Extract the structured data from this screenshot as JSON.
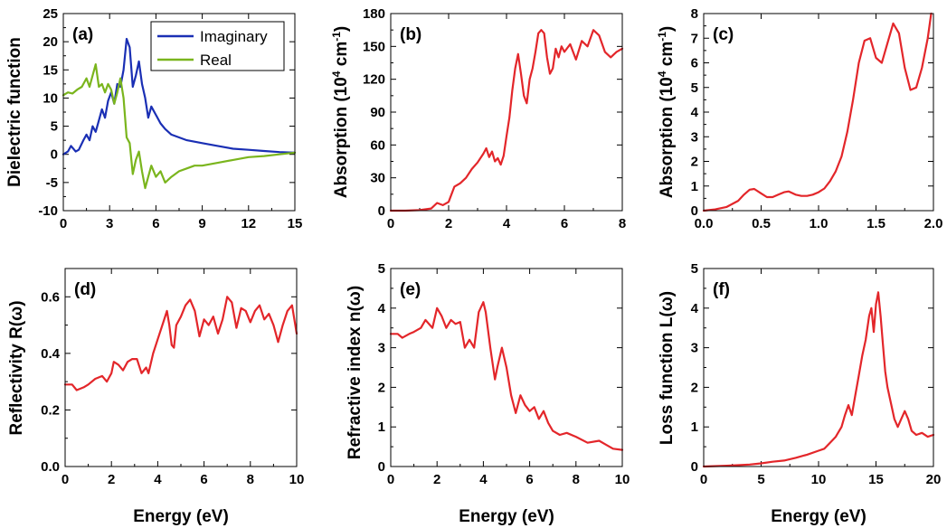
{
  "figure": {
    "xlabel_common": "Energy (eV)"
  },
  "chart_data": [
    {
      "id": "a",
      "type": "line",
      "panel_label": "(a)",
      "xlabel": "",
      "ylabel": "Dielectric function",
      "xlim": [
        0,
        15
      ],
      "ylim": [
        -10,
        25
      ],
      "xticks": [
        "0",
        "3",
        "6",
        "9",
        "12",
        "15"
      ],
      "yticks": [
        "-10",
        "-5",
        "0",
        "5",
        "10",
        "15",
        "20",
        "25"
      ],
      "legend": {
        "position": "top-right",
        "entries": [
          "Imaginary",
          "Real"
        ]
      },
      "series": [
        {
          "name": "Imaginary",
          "color": "#1a2fb4",
          "x": [
            0,
            0.3,
            0.5,
            0.8,
            1.0,
            1.3,
            1.5,
            1.7,
            1.9,
            2.1,
            2.3,
            2.5,
            2.7,
            2.9,
            3.1,
            3.3,
            3.5,
            3.7,
            3.9,
            4.1,
            4.3,
            4.5,
            4.7,
            4.9,
            5.1,
            5.3,
            5.5,
            5.7,
            6.0,
            6.3,
            6.6,
            7.0,
            7.5,
            8.0,
            9.0,
            10,
            11,
            12,
            13,
            14,
            15
          ],
          "y": [
            0,
            0.5,
            1.5,
            0.5,
            0.8,
            2.5,
            3.5,
            2.5,
            5.0,
            4.0,
            6.0,
            8.0,
            6.5,
            9.5,
            11,
            9.0,
            12.5,
            12,
            15,
            20.5,
            19,
            12,
            14,
            16.5,
            12.5,
            10,
            6.5,
            8.5,
            7.0,
            5.5,
            4.5,
            3.5,
            3.0,
            2.5,
            2.0,
            1.5,
            1.0,
            0.8,
            0.6,
            0.4,
            0.3
          ]
        },
        {
          "name": "Real",
          "color": "#7ab51d",
          "x": [
            0,
            0.3,
            0.6,
            0.9,
            1.2,
            1.5,
            1.7,
            1.9,
            2.1,
            2.3,
            2.5,
            2.7,
            2.9,
            3.1,
            3.3,
            3.5,
            3.7,
            3.9,
            4.1,
            4.3,
            4.5,
            4.7,
            4.9,
            5.1,
            5.3,
            5.5,
            5.7,
            6.0,
            6.3,
            6.6,
            7.0,
            7.5,
            8.0,
            8.5,
            9.0,
            10,
            11,
            12,
            13,
            14,
            15
          ],
          "y": [
            10.5,
            11,
            10.8,
            11.5,
            12,
            13.5,
            12,
            14,
            16,
            12,
            12.5,
            11,
            12.5,
            11.5,
            9.0,
            11,
            13.5,
            10,
            3.0,
            2.0,
            -3.5,
            -1.0,
            0.5,
            -3.0,
            -6.0,
            -4.0,
            -2.0,
            -4.0,
            -3.0,
            -5.0,
            -4.0,
            -3.0,
            -2.5,
            -2.0,
            -2.0,
            -1.5,
            -1.0,
            -0.5,
            -0.3,
            0,
            0.3
          ]
        }
      ]
    },
    {
      "id": "b",
      "type": "line",
      "panel_label": "(b)",
      "xlabel": "",
      "ylabel_main": "Absorption (10",
      "ylabel_sup1": "4",
      "ylabel_mid": " cm",
      "ylabel_sup2": "-1",
      "ylabel_end": ")",
      "xlim": [
        0,
        8
      ],
      "ylim": [
        0,
        180
      ],
      "xticks": [
        "0",
        "2",
        "4",
        "6",
        "8"
      ],
      "yticks": [
        "0",
        "30",
        "60",
        "90",
        "120",
        "150",
        "180"
      ],
      "series": [
        {
          "name": "Absorption",
          "color": "#e3262a",
          "x": [
            0,
            0.5,
            1.0,
            1.4,
            1.6,
            1.8,
            2.0,
            2.2,
            2.4,
            2.6,
            2.8,
            3.0,
            3.2,
            3.3,
            3.4,
            3.5,
            3.6,
            3.7,
            3.8,
            3.9,
            4.0,
            4.1,
            4.2,
            4.3,
            4.4,
            4.5,
            4.6,
            4.7,
            4.8,
            4.9,
            5.0,
            5.1,
            5.2,
            5.3,
            5.4,
            5.5,
            5.6,
            5.7,
            5.8,
            5.9,
            6.0,
            6.2,
            6.4,
            6.6,
            6.8,
            7.0,
            7.2,
            7.4,
            7.6,
            7.8,
            8.0
          ],
          "y": [
            0,
            0,
            0.5,
            2,
            7,
            5,
            8,
            22,
            25,
            30,
            38,
            44,
            52,
            57,
            49,
            54,
            45,
            48,
            42,
            50,
            68,
            85,
            110,
            130,
            143,
            125,
            105,
            98,
            120,
            130,
            145,
            162,
            165,
            162,
            140,
            125,
            130,
            148,
            140,
            150,
            145,
            152,
            138,
            155,
            150,
            165,
            160,
            145,
            140,
            145,
            148
          ]
        }
      ]
    },
    {
      "id": "c",
      "type": "line",
      "panel_label": "(c)",
      "xlabel": "",
      "ylabel_main": "Absorption (10",
      "ylabel_sup1": "4",
      "ylabel_mid": " cm",
      "ylabel_sup2": "-1",
      "ylabel_end": ")",
      "xlim": [
        0,
        2.0
      ],
      "ylim": [
        0,
        8
      ],
      "xticks": [
        "0.0",
        "0.5",
        "1.0",
        "1.5",
        "2.0"
      ],
      "yticks": [
        "0",
        "1",
        "2",
        "3",
        "4",
        "5",
        "6",
        "7",
        "8"
      ],
      "series": [
        {
          "name": "Absorption",
          "color": "#e3262a",
          "x": [
            0,
            0.1,
            0.2,
            0.3,
            0.35,
            0.4,
            0.44,
            0.5,
            0.55,
            0.6,
            0.65,
            0.7,
            0.74,
            0.8,
            0.85,
            0.9,
            0.95,
            1.0,
            1.05,
            1.1,
            1.15,
            1.2,
            1.25,
            1.3,
            1.35,
            1.4,
            1.45,
            1.5,
            1.55,
            1.6,
            1.65,
            1.7,
            1.75,
            1.8,
            1.85,
            1.9,
            1.95,
            1.98
          ],
          "y": [
            0,
            0.05,
            0.15,
            0.4,
            0.65,
            0.85,
            0.88,
            0.7,
            0.55,
            0.55,
            0.65,
            0.75,
            0.78,
            0.65,
            0.6,
            0.6,
            0.65,
            0.75,
            0.9,
            1.2,
            1.6,
            2.2,
            3.2,
            4.5,
            6.0,
            6.9,
            7.0,
            6.2,
            6.0,
            6.8,
            7.6,
            7.2,
            5.8,
            4.9,
            5.0,
            5.8,
            7.0,
            8.0
          ]
        }
      ]
    },
    {
      "id": "d",
      "type": "line",
      "panel_label": "(d)",
      "xlabel": "Energy (eV)",
      "ylabel": "Reflectivity R(ω)",
      "xlim": [
        0,
        10
      ],
      "ylim": [
        0,
        0.7
      ],
      "xticks": [
        "0",
        "2",
        "4",
        "6",
        "8",
        "10"
      ],
      "yticks": [
        "0.0",
        "0.2",
        "0.4",
        "0.6"
      ],
      "series": [
        {
          "name": "Reflectivity",
          "color": "#e3262a",
          "x": [
            0,
            0.3,
            0.5,
            0.8,
            1.0,
            1.3,
            1.6,
            1.8,
            2.0,
            2.1,
            2.3,
            2.5,
            2.7,
            2.9,
            3.1,
            3.3,
            3.5,
            3.6,
            3.8,
            4.0,
            4.2,
            4.4,
            4.5,
            4.6,
            4.7,
            4.8,
            5.0,
            5.2,
            5.4,
            5.6,
            5.8,
            6.0,
            6.2,
            6.4,
            6.6,
            6.8,
            7.0,
            7.2,
            7.4,
            7.6,
            7.8,
            8.0,
            8.2,
            8.4,
            8.6,
            8.8,
            9.0,
            9.2,
            9.4,
            9.6,
            9.8,
            10
          ],
          "y": [
            0.29,
            0.29,
            0.27,
            0.28,
            0.29,
            0.31,
            0.32,
            0.3,
            0.33,
            0.37,
            0.36,
            0.34,
            0.37,
            0.38,
            0.38,
            0.33,
            0.35,
            0.33,
            0.4,
            0.45,
            0.5,
            0.55,
            0.5,
            0.43,
            0.42,
            0.5,
            0.53,
            0.57,
            0.59,
            0.55,
            0.46,
            0.52,
            0.5,
            0.53,
            0.47,
            0.52,
            0.6,
            0.58,
            0.49,
            0.56,
            0.55,
            0.51,
            0.55,
            0.57,
            0.52,
            0.54,
            0.5,
            0.44,
            0.5,
            0.55,
            0.57,
            0.47
          ]
        }
      ]
    },
    {
      "id": "e",
      "type": "line",
      "panel_label": "(e)",
      "xlabel": "Energy (eV)",
      "ylabel": "Refractive index n(ω)",
      "xlim": [
        0,
        10
      ],
      "ylim": [
        0,
        5
      ],
      "xticks": [
        "0",
        "2",
        "4",
        "6",
        "8",
        "10"
      ],
      "yticks": [
        "0",
        "1",
        "2",
        "3",
        "4",
        "5"
      ],
      "series": [
        {
          "name": "Refractive index",
          "color": "#e3262a",
          "x": [
            0,
            0.3,
            0.5,
            0.8,
            1.0,
            1.3,
            1.5,
            1.8,
            2.0,
            2.2,
            2.4,
            2.6,
            2.8,
            3.0,
            3.2,
            3.4,
            3.6,
            3.8,
            4.0,
            4.1,
            4.3,
            4.5,
            4.6,
            4.8,
            5.0,
            5.2,
            5.4,
            5.6,
            5.8,
            6.0,
            6.2,
            6.4,
            6.6,
            6.8,
            7.0,
            7.3,
            7.6,
            8.0,
            8.5,
            9.0,
            9.3,
            9.6,
            10
          ],
          "y": [
            3.35,
            3.35,
            3.25,
            3.35,
            3.4,
            3.5,
            3.7,
            3.5,
            4.0,
            3.8,
            3.5,
            3.7,
            3.6,
            3.65,
            3.0,
            3.2,
            3.0,
            3.9,
            4.15,
            3.9,
            3.0,
            2.2,
            2.5,
            3.0,
            2.5,
            1.8,
            1.35,
            1.8,
            1.55,
            1.4,
            1.5,
            1.2,
            1.4,
            1.1,
            0.9,
            0.8,
            0.85,
            0.75,
            0.6,
            0.65,
            0.55,
            0.45,
            0.42
          ]
        }
      ]
    },
    {
      "id": "f",
      "type": "line",
      "panel_label": "(f)",
      "xlabel": "Energy (eV)",
      "ylabel": "Loss function L(ω)",
      "xlim": [
        0,
        20
      ],
      "ylim": [
        0,
        5
      ],
      "xticks": [
        "0",
        "5",
        "10",
        "15",
        "20"
      ],
      "yticks": [
        "0",
        "1",
        "2",
        "3",
        "4",
        "5"
      ],
      "series": [
        {
          "name": "Loss function",
          "color": "#e3262a",
          "x": [
            0,
            2,
            4,
            5,
            6,
            7,
            8,
            9,
            10,
            10.5,
            11,
            11.5,
            12,
            12.3,
            12.6,
            12.9,
            13.2,
            13.5,
            13.8,
            14.1,
            14.4,
            14.6,
            14.8,
            15.0,
            15.2,
            15.4,
            15.6,
            15.8,
            16.0,
            16.3,
            16.6,
            16.9,
            17.2,
            17.5,
            17.8,
            18.1,
            18.5,
            19,
            19.5,
            20
          ],
          "y": [
            0,
            0.02,
            0.05,
            0.08,
            0.12,
            0.15,
            0.22,
            0.3,
            0.4,
            0.45,
            0.6,
            0.75,
            1.0,
            1.3,
            1.55,
            1.3,
            1.8,
            2.3,
            2.8,
            3.2,
            3.8,
            4.0,
            3.4,
            4.1,
            4.4,
            3.8,
            3.1,
            2.4,
            2.0,
            1.6,
            1.2,
            1.0,
            1.2,
            1.4,
            1.2,
            0.9,
            0.8,
            0.85,
            0.75,
            0.8
          ]
        }
      ]
    }
  ]
}
